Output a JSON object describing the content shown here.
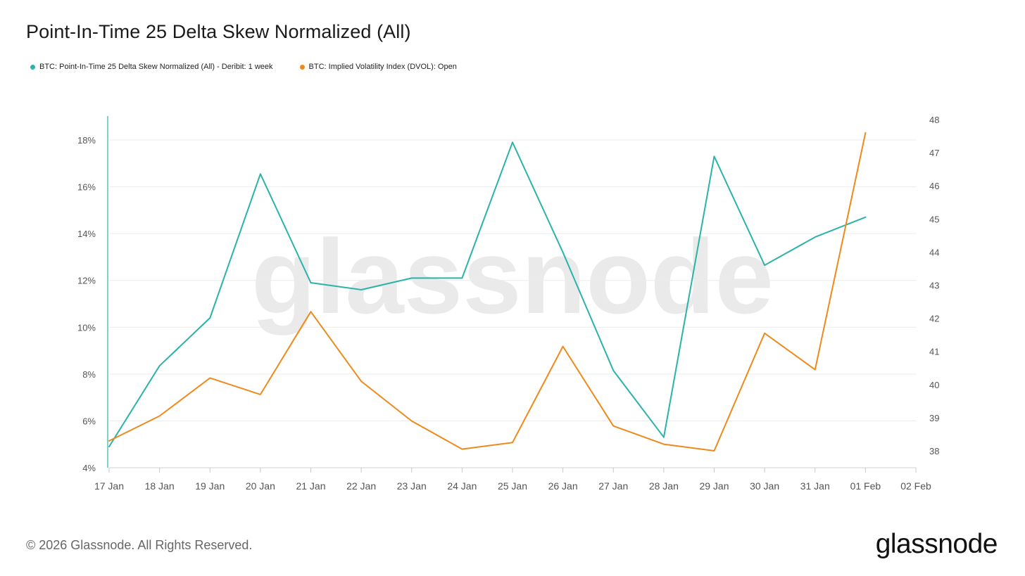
{
  "title": "Point-In-Time 25 Delta Skew Normalized (All)",
  "watermark": "glassnode",
  "footer": "© 2026 Glassnode. All Rights Reserved.",
  "brand": "glassnode",
  "colors": {
    "skew": "#2bb3a9",
    "dvol": "#ee8a1c",
    "grid": "#ececec",
    "axis_text": "#555555"
  },
  "chart_data": {
    "type": "line",
    "categories": [
      "17 Jan",
      "18 Jan",
      "19 Jan",
      "20 Jan",
      "21 Jan",
      "22 Jan",
      "23 Jan",
      "24 Jan",
      "25 Jan",
      "26 Jan",
      "27 Jan",
      "28 Jan",
      "29 Jan",
      "30 Jan",
      "31 Jan",
      "01 Feb",
      "02 Feb"
    ],
    "y_left": {
      "ticks": [
        4,
        6,
        8,
        10,
        12,
        14,
        16,
        18
      ],
      "tick_labels": [
        "4%",
        "6%",
        "8%",
        "10%",
        "12%",
        "14%",
        "16%",
        "18%"
      ],
      "range": [
        4,
        18.5
      ]
    },
    "y_right": {
      "ticks": [
        38,
        39,
        40,
        41,
        42,
        43,
        44,
        45,
        46,
        47,
        48
      ],
      "tick_labels": [
        "38",
        "39",
        "40",
        "41",
        "42",
        "43",
        "44",
        "45",
        "46",
        "47",
        "48"
      ],
      "range": [
        37.5,
        48
      ]
    },
    "grid": true,
    "legend_position": "top-left",
    "series": [
      {
        "name": "BTC: Point-In-Time 25 Delta Skew Normalized (All) - Deribit: 1 week",
        "axis": "left",
        "values": [
          4.9,
          8.35,
          10.4,
          16.55,
          11.9,
          11.6,
          12.1,
          12.1,
          17.9,
          13.2,
          8.15,
          5.3,
          17.3,
          12.65,
          13.85,
          14.7,
          null
        ]
      },
      {
        "name": "BTC: Implied Volatility Index (DVOL): Open",
        "axis": "right",
        "values": [
          38.3,
          39.05,
          40.2,
          39.7,
          42.2,
          40.1,
          38.9,
          38.05,
          38.25,
          41.15,
          38.75,
          38.2,
          38.0,
          41.55,
          40.45,
          47.6,
          null
        ]
      }
    ]
  }
}
